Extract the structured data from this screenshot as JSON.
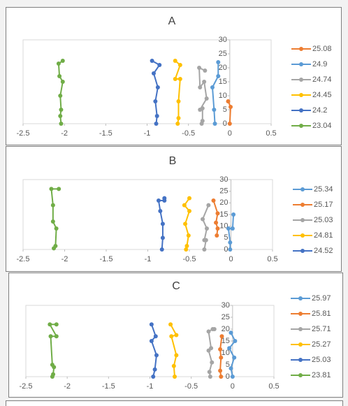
{
  "chart_data": [
    {
      "type": "scatter",
      "title": "A",
      "xlim": [
        -2.5,
        0.5
      ],
      "ylim": [
        0,
        30
      ],
      "xticks": [
        -2.5,
        -2,
        -1.5,
        -1,
        -0.5,
        0,
        0.5
      ],
      "yticks": [
        0,
        5,
        10,
        15,
        20,
        25,
        30
      ],
      "legend": "right",
      "series": [
        {
          "name": "25.08",
          "color": "#ed7d31",
          "x": [
            0,
            0.01,
            -0.02
          ],
          "values": [
            0,
            6,
            8
          ]
        },
        {
          "name": "24.9",
          "color": "#5b9bd5",
          "x": [
            -0.18,
            -0.19,
            -0.21,
            -0.14,
            -0.14
          ],
          "values": [
            0,
            5,
            13,
            17,
            22
          ]
        },
        {
          "name": "24.74",
          "color": "#a5a5a5",
          "x": [
            -0.34,
            -0.33,
            -0.33,
            -0.36,
            -0.28,
            -0.31,
            -0.36,
            -0.37,
            -0.3
          ],
          "values": [
            0,
            1,
            5.5,
            5,
            9,
            15,
            13,
            20,
            19
          ]
        },
        {
          "name": "24.45",
          "color": "#ffc000",
          "x": [
            -0.63,
            -0.62,
            -0.62,
            -0.6,
            -0.66,
            -0.6,
            -0.66
          ],
          "values": [
            0,
            2,
            8,
            16,
            16,
            21,
            22.5
          ]
        },
        {
          "name": "24.2",
          "color": "#4472c4",
          "x": [
            -0.89,
            -0.88,
            -0.9,
            -0.87,
            -0.92,
            -0.85,
            -0.94
          ],
          "values": [
            0,
            2.75,
            8,
            13,
            18,
            21,
            22.5
          ]
        },
        {
          "name": "23.04",
          "color": "#70ad47",
          "x": [
            -2.04,
            -2.05,
            -2.04,
            -2.05,
            -2.02,
            -2.06,
            -2.07,
            -2.02
          ],
          "values": [
            0,
            2.75,
            5,
            10,
            15,
            17,
            21.5,
            22.5
          ]
        }
      ]
    },
    {
      "type": "scatter",
      "title": "B",
      "xlim": [
        -2.5,
        0.5
      ],
      "ylim": [
        0,
        30
      ],
      "xticks": [
        -2.5,
        -2,
        -1.5,
        -1,
        -0.5,
        0,
        0.5
      ],
      "yticks": [
        0,
        5,
        10,
        15,
        20,
        25,
        30
      ],
      "legend": "right",
      "series": [
        {
          "name": "25.34",
          "color": "#5b9bd5",
          "x": [
            -0.01,
            -0.01,
            -0.03,
            0.02,
            0.03
          ],
          "values": [
            0,
            3,
            9,
            9,
            15
          ]
        },
        {
          "name": "25.17",
          "color": "#ed7d31",
          "x": [
            -0.17,
            -0.16,
            -0.18,
            -0.16,
            -0.21
          ],
          "values": [
            6,
            9,
            11.5,
            15.5,
            21
          ]
        },
        {
          "name": "25.03",
          "color": "#a5a5a5",
          "x": [
            -0.32,
            -0.3,
            -0.32,
            -0.29,
            -0.34,
            -0.27
          ],
          "values": [
            0,
            4,
            4,
            9,
            13,
            19
          ]
        },
        {
          "name": "24.81",
          "color": "#ffc000",
          "x": [
            -0.54,
            -0.53,
            -0.51,
            -0.55,
            -0.5,
            -0.56,
            -0.5
          ],
          "values": [
            0,
            1.5,
            6,
            11,
            16.5,
            19,
            22
          ]
        },
        {
          "name": "24.52",
          "color": "#4472c4",
          "x": [
            -0.83,
            -0.82,
            -0.82,
            -0.85,
            -0.87,
            -0.8,
            -0.8
          ],
          "values": [
            0,
            5,
            11,
            16.5,
            21,
            21,
            22
          ]
        },
        {
          "name": "",
          "color": "#70ad47",
          "x": [
            -2.13,
            -2.11,
            -2.1,
            -2.14,
            -2.14,
            -2.16,
            -2.07
          ],
          "values": [
            0.5,
            1.5,
            9,
            12,
            19,
            26,
            26
          ]
        }
      ]
    },
    {
      "type": "scatter",
      "title": "C",
      "xlim": [
        -2.5,
        0.5
      ],
      "ylim": [
        0,
        30
      ],
      "xticks": [
        -2.5,
        -2,
        -1.5,
        -1,
        -0.5,
        0,
        0.5
      ],
      "yticks": [
        0,
        5,
        10,
        15,
        20,
        25,
        30
      ],
      "legend": "right",
      "series": [
        {
          "name": "25.97",
          "color": "#5b9bd5",
          "x": [
            0,
            -0.02,
            0.02,
            -0.04,
            0.03,
            -0.02
          ],
          "values": [
            0,
            3.5,
            8,
            12,
            15,
            18.5
          ]
        },
        {
          "name": "25.81",
          "color": "#ed7d31",
          "x": [
            -0.14,
            -0.15,
            -0.14,
            -0.15,
            -0.13
          ],
          "values": [
            0,
            2.5,
            8,
            11.5,
            17
          ]
        },
        {
          "name": "25.71",
          "color": "#a5a5a5",
          "x": [
            -0.27,
            -0.28,
            -0.25,
            -0.29,
            -0.26,
            -0.29,
            -0.24,
            -0.22
          ],
          "values": [
            0,
            2,
            6,
            11,
            12,
            19,
            20,
            20
          ]
        },
        {
          "name": "25.27",
          "color": "#ffc000",
          "x": [
            -0.7,
            -0.71,
            -0.68,
            -0.74,
            -0.68,
            -0.75
          ],
          "values": [
            0,
            4.5,
            9,
            17,
            17.5,
            22
          ]
        },
        {
          "name": "25.03",
          "color": "#4472c4",
          "x": [
            -0.96,
            -0.94,
            -0.92,
            -0.98,
            -0.93,
            -0.98
          ],
          "values": [
            0,
            3,
            9,
            15,
            17,
            22
          ]
        },
        {
          "name": "23.81",
          "color": "#70ad47",
          "x": [
            -2.18,
            -2.17,
            -2.16,
            -2.18,
            -2.2,
            -2.13,
            -2.21,
            -2.13
          ],
          "values": [
            0,
            1,
            4,
            5,
            17,
            17,
            22,
            22
          ]
        }
      ]
    }
  ]
}
